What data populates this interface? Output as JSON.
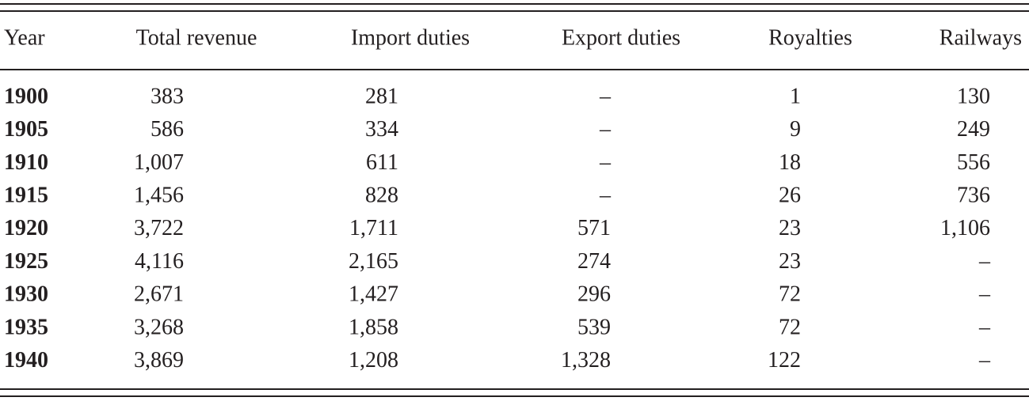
{
  "table": {
    "header": [
      "Year",
      "Total revenue",
      "Import duties",
      "Export duties",
      "Royalties",
      "Railways"
    ],
    "rows": [
      [
        "1900",
        "383",
        "281",
        "–",
        "1",
        "130"
      ],
      [
        "1905",
        "586",
        "334",
        "–",
        "9",
        "249"
      ],
      [
        "1910",
        "1,007",
        "611",
        "–",
        "18",
        "556"
      ],
      [
        "1915",
        "1,456",
        "828",
        "–",
        "26",
        "736"
      ],
      [
        "1920",
        "3,722",
        "1,711",
        "571",
        "23",
        "1,106"
      ],
      [
        "1925",
        "4,116",
        "2,165",
        "274",
        "23",
        "–"
      ],
      [
        "1930",
        "2,671",
        "1,427",
        "296",
        "72",
        "–"
      ],
      [
        "1935",
        "3,268",
        "1,858",
        "539",
        "72",
        "–"
      ],
      [
        "1940",
        "3,869",
        "1,208",
        "1,328",
        "122",
        "–"
      ]
    ]
  }
}
